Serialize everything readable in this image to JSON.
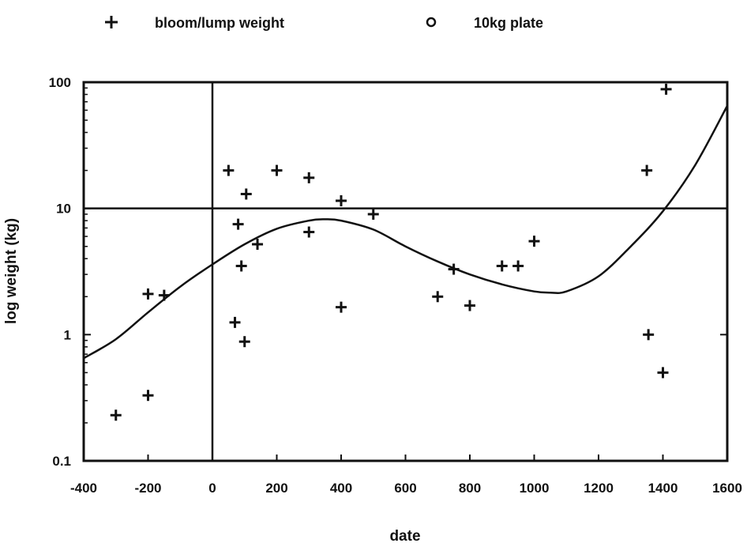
{
  "chart_data": {
    "type": "scatter",
    "title": "",
    "xlabel": "date",
    "ylabel": "log weight (kg)",
    "xlim": [
      -400,
      1600
    ],
    "ylim": [
      0.1,
      100
    ],
    "yscale": "log",
    "x_ticks": [
      -400,
      -200,
      0,
      200,
      400,
      600,
      800,
      1000,
      1200,
      1400,
      1600
    ],
    "y_ticks": [
      0.1,
      1,
      10,
      100
    ],
    "x_tick_labels": [
      "-400",
      "-200",
      "0",
      "200",
      "400",
      "600",
      "800",
      "1000",
      "1200",
      "1400",
      "1600"
    ],
    "y_tick_labels": [
      "0.1",
      "1",
      "10",
      "100"
    ],
    "reference_lines": {
      "x": 0,
      "y": 10
    },
    "legend": {
      "position": "top",
      "entries": [
        {
          "marker": "plus",
          "label": "bloom/lump weight"
        },
        {
          "marker": "circle",
          "label": "10kg plate"
        }
      ]
    },
    "series": [
      {
        "name": "bloom/lump weight",
        "marker": "plus",
        "points": [
          {
            "x": -300,
            "y": 0.23
          },
          {
            "x": -200,
            "y": 0.33
          },
          {
            "x": -200,
            "y": 2.1
          },
          {
            "x": -150,
            "y": 2.05
          },
          {
            "x": 50,
            "y": 20
          },
          {
            "x": 70,
            "y": 1.25
          },
          {
            "x": 80,
            "y": 7.5
          },
          {
            "x": 90,
            "y": 3.5
          },
          {
            "x": 100,
            "y": 0.88
          },
          {
            "x": 105,
            "y": 13
          },
          {
            "x": 140,
            "y": 5.2
          },
          {
            "x": 200,
            "y": 20
          },
          {
            "x": 300,
            "y": 17.5
          },
          {
            "x": 300,
            "y": 6.5
          },
          {
            "x": 400,
            "y": 11.5
          },
          {
            "x": 400,
            "y": 1.65
          },
          {
            "x": 500,
            "y": 9
          },
          {
            "x": 700,
            "y": 2
          },
          {
            "x": 750,
            "y": 3.3
          },
          {
            "x": 800,
            "y": 1.7
          },
          {
            "x": 900,
            "y": 3.5
          },
          {
            "x": 950,
            "y": 3.5
          },
          {
            "x": 1000,
            "y": 5.5
          },
          {
            "x": 1350,
            "y": 20
          },
          {
            "x": 1355,
            "y": 1
          },
          {
            "x": 1400,
            "y": 0.5
          },
          {
            "x": 1410,
            "y": 88
          }
        ]
      },
      {
        "name": "fitted curve",
        "type": "line",
        "points": [
          {
            "x": -400,
            "y": 0.65
          },
          {
            "x": -300,
            "y": 0.92
          },
          {
            "x": -200,
            "y": 1.5
          },
          {
            "x": -100,
            "y": 2.4
          },
          {
            "x": 0,
            "y": 3.6
          },
          {
            "x": 100,
            "y": 5.2
          },
          {
            "x": 200,
            "y": 6.9
          },
          {
            "x": 300,
            "y": 8.0
          },
          {
            "x": 350,
            "y": 8.2
          },
          {
            "x": 400,
            "y": 8.0
          },
          {
            "x": 500,
            "y": 6.8
          },
          {
            "x": 600,
            "y": 5.0
          },
          {
            "x": 700,
            "y": 3.8
          },
          {
            "x": 800,
            "y": 3.0
          },
          {
            "x": 900,
            "y": 2.5
          },
          {
            "x": 1000,
            "y": 2.2
          },
          {
            "x": 1050,
            "y": 2.15
          },
          {
            "x": 1100,
            "y": 2.2
          },
          {
            "x": 1200,
            "y": 2.9
          },
          {
            "x": 1300,
            "y": 5.0
          },
          {
            "x": 1400,
            "y": 9.5
          },
          {
            "x": 1500,
            "y": 22
          },
          {
            "x": 1600,
            "y": 65
          }
        ]
      }
    ]
  }
}
